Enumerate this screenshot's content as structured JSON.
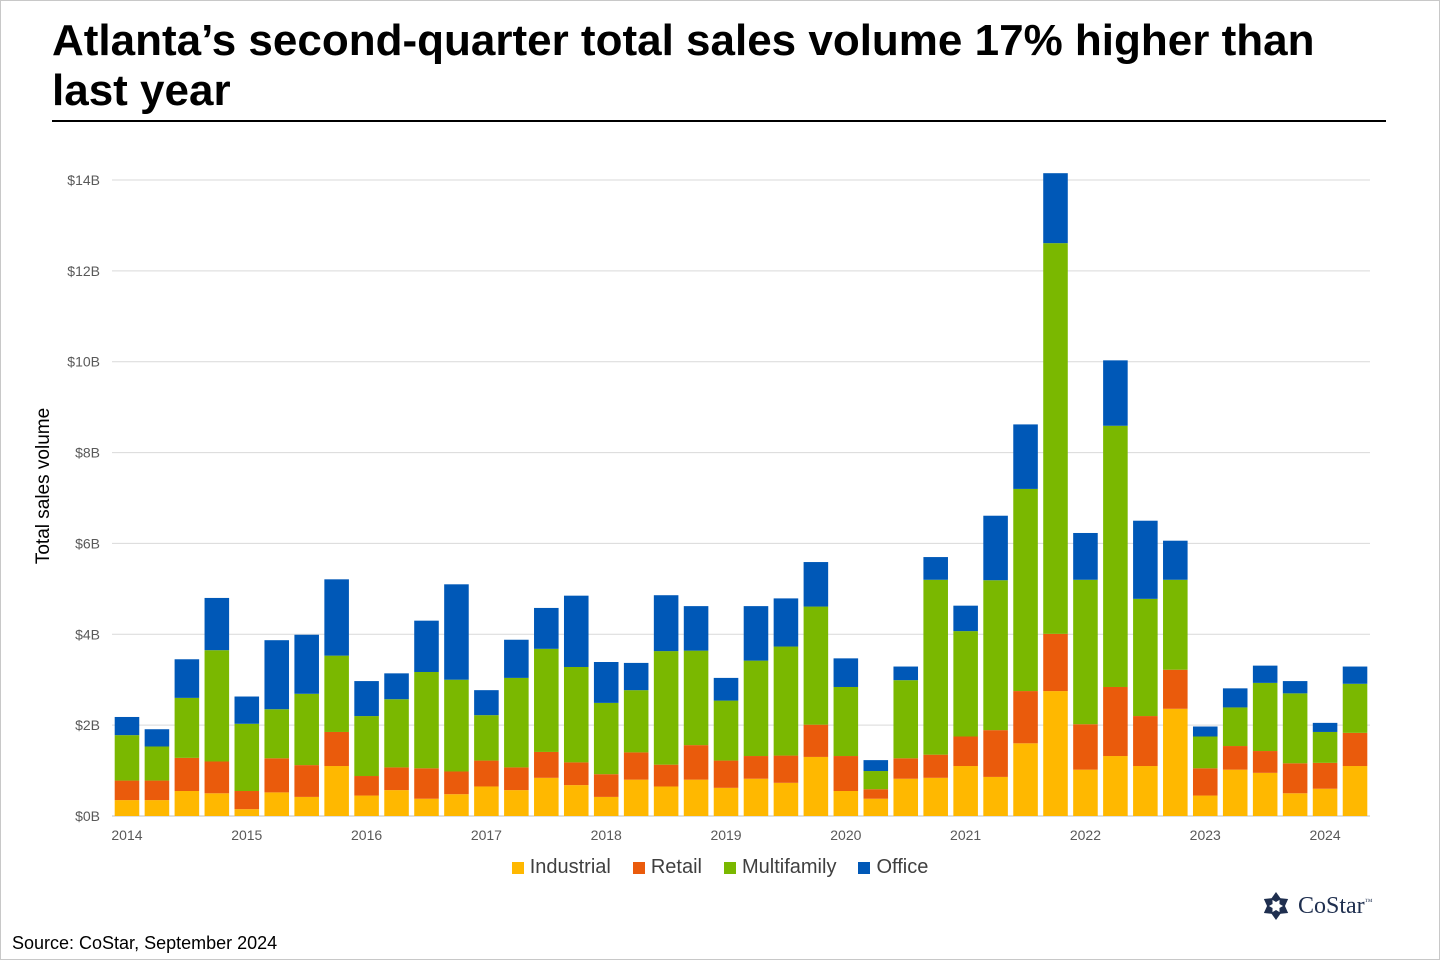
{
  "title": "Atlanta’s second-quarter total sales volume 17% higher than last year",
  "source": "Source: CoStar, September 2024",
  "brand": {
    "name": "CoStar",
    "tm": "™",
    "icon": "costar-star-logo"
  },
  "colors": {
    "Industrial": "#ffb800",
    "Retail": "#ea5b0c",
    "Multifamily": "#7ab800",
    "Office": "#0058b7",
    "brand": "#1f2f4f"
  },
  "chart_data": {
    "type": "bar",
    "stacked": true,
    "ylabel": "Total sales volume",
    "y_ticks": [
      "$0B",
      "$2B",
      "$4B",
      "$6B",
      "$8B",
      "$10B",
      "$12B",
      "$14B"
    ],
    "ylim": [
      0,
      14
    ],
    "y_unit": "billions of dollars",
    "x_tick_labels": [
      "2014",
      "2015",
      "2016",
      "2017",
      "2018",
      "2019",
      "2020",
      "2021",
      "2022",
      "2023",
      "2024"
    ],
    "categories": [
      "2014 Q1",
      "2014 Q2",
      "2014 Q3",
      "2014 Q4",
      "2015 Q1",
      "2015 Q2",
      "2015 Q3",
      "2015 Q4",
      "2016 Q1",
      "2016 Q2",
      "2016 Q3",
      "2016 Q4",
      "2017 Q1",
      "2017 Q2",
      "2017 Q3",
      "2017 Q4",
      "2018 Q1",
      "2018 Q2",
      "2018 Q3",
      "2018 Q4",
      "2019 Q1",
      "2019 Q2",
      "2019 Q3",
      "2019 Q4",
      "2020 Q1",
      "2020 Q2",
      "2020 Q3",
      "2020 Q4",
      "2021 Q1",
      "2021 Q2",
      "2021 Q3",
      "2021 Q4",
      "2022 Q1",
      "2022 Q2",
      "2022 Q3",
      "2022 Q4",
      "2023 Q1",
      "2023 Q2",
      "2023 Q3",
      "2023 Q4",
      "2024 Q1",
      "2024 Q2"
    ],
    "legend": "bottom",
    "grid": true,
    "series": [
      {
        "name": "Industrial",
        "values": [
          0.35,
          0.35,
          0.55,
          0.5,
          0.15,
          0.52,
          0.42,
          1.1,
          0.45,
          0.57,
          0.38,
          0.48,
          0.65,
          0.57,
          0.84,
          0.68,
          0.42,
          0.8,
          0.65,
          0.8,
          0.62,
          0.82,
          0.73,
          1.3,
          0.55,
          0.38,
          0.82,
          0.84,
          1.1,
          0.86,
          1.6,
          2.75,
          1.02,
          1.32,
          1.1,
          2.36,
          0.45,
          1.02,
          0.95,
          0.5,
          0.6,
          1.1
        ]
      },
      {
        "name": "Retail",
        "values": [
          0.43,
          0.43,
          0.73,
          0.7,
          0.4,
          0.75,
          0.7,
          0.75,
          0.43,
          0.5,
          0.67,
          0.5,
          0.57,
          0.5,
          0.57,
          0.5,
          0.5,
          0.6,
          0.48,
          0.76,
          0.6,
          0.5,
          0.6,
          0.71,
          0.77,
          0.21,
          0.45,
          0.51,
          0.65,
          1.03,
          1.15,
          1.26,
          1.0,
          1.52,
          1.1,
          0.86,
          0.6,
          0.52,
          0.48,
          0.66,
          0.57,
          0.73
        ]
      },
      {
        "name": "Multifamily",
        "values": [
          1.0,
          0.75,
          1.32,
          2.45,
          1.48,
          1.08,
          1.57,
          1.68,
          1.32,
          1.5,
          2.12,
          2.02,
          1.0,
          1.97,
          2.27,
          2.1,
          1.57,
          1.37,
          2.5,
          2.08,
          1.32,
          2.1,
          2.4,
          2.6,
          1.52,
          0.4,
          1.72,
          3.85,
          2.32,
          3.3,
          4.45,
          8.6,
          3.18,
          5.75,
          2.58,
          1.98,
          0.7,
          0.85,
          1.5,
          1.54,
          0.68,
          1.08
        ]
      },
      {
        "name": "Office",
        "values": [
          0.4,
          0.38,
          0.85,
          1.15,
          0.6,
          1.52,
          1.3,
          1.68,
          0.77,
          0.57,
          1.13,
          2.1,
          0.55,
          0.84,
          0.9,
          1.57,
          0.9,
          0.6,
          1.23,
          0.98,
          0.5,
          1.2,
          1.06,
          0.98,
          0.63,
          0.24,
          0.3,
          0.5,
          0.56,
          1.42,
          1.42,
          1.54,
          1.03,
          1.44,
          1.72,
          0.86,
          0.22,
          0.42,
          0.38,
          0.27,
          0.2,
          0.38
        ]
      }
    ]
  }
}
